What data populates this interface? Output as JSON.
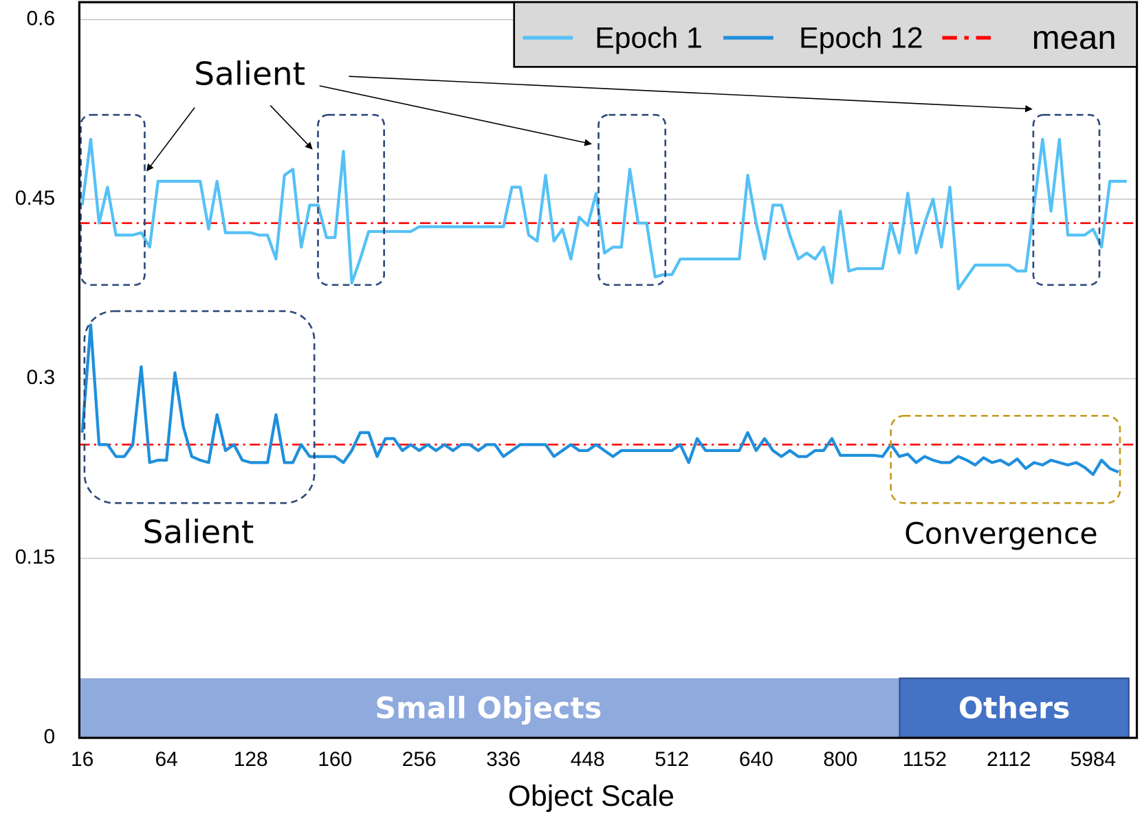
{
  "chart_data": {
    "type": "line",
    "x_label": "Object Scale",
    "categories": [
      "16",
      null,
      null,
      null,
      null,
      null,
      null,
      null,
      null,
      null,
      "64",
      null,
      null,
      null,
      null,
      null,
      null,
      null,
      null,
      null,
      "128",
      null,
      null,
      null,
      null,
      null,
      null,
      null,
      null,
      null,
      "160",
      null,
      null,
      null,
      null,
      null,
      null,
      null,
      null,
      null,
      "256",
      null,
      null,
      null,
      null,
      null,
      null,
      null,
      null,
      null,
      "336",
      null,
      null,
      null,
      null,
      null,
      null,
      null,
      null,
      null,
      "448",
      null,
      null,
      null,
      null,
      null,
      null,
      null,
      null,
      null,
      "512",
      null,
      null,
      null,
      null,
      null,
      null,
      null,
      null,
      null,
      "640",
      null,
      null,
      null,
      null,
      null,
      null,
      null,
      null,
      null,
      "800",
      null,
      null,
      null,
      null,
      null,
      null,
      null,
      null,
      null,
      "1152",
      null,
      null,
      null,
      null,
      null,
      null,
      null,
      null,
      null,
      "2112",
      null,
      null,
      null,
      null,
      null,
      null,
      null,
      null,
      null,
      "5984",
      null,
      null,
      null,
      null,
      null
    ],
    "series": [
      {
        "name": "Epoch 1",
        "color": "#55c1f5",
        "values": [
          0.445,
          0.5,
          0.43,
          0.46,
          0.42,
          0.42,
          0.42,
          0.422,
          0.41,
          0.465,
          0.465,
          0.465,
          0.465,
          0.465,
          0.465,
          0.425,
          0.465,
          0.422,
          0.422,
          0.422,
          0.422,
          0.42,
          0.42,
          0.4,
          0.47,
          0.475,
          0.41,
          0.445,
          0.445,
          0.418,
          0.418,
          0.49,
          0.38,
          0.4,
          0.423,
          0.423,
          0.423,
          0.423,
          0.423,
          0.423,
          0.427,
          0.427,
          0.427,
          0.427,
          0.427,
          0.427,
          0.427,
          0.427,
          0.427,
          0.427,
          0.427,
          0.46,
          0.46,
          0.42,
          0.415,
          0.47,
          0.415,
          0.425,
          0.4,
          0.435,
          0.428,
          0.455,
          0.405,
          0.41,
          0.41,
          0.475,
          0.43,
          0.43,
          0.385,
          0.387,
          0.387,
          0.4,
          0.4,
          0.4,
          0.4,
          0.4,
          0.4,
          0.4,
          0.4,
          0.47,
          0.43,
          0.4,
          0.445,
          0.445,
          0.42,
          0.4,
          0.405,
          0.4,
          0.41,
          0.38,
          0.44,
          0.39,
          0.392,
          0.392,
          0.392,
          0.392,
          0.43,
          0.405,
          0.455,
          0.405,
          0.43,
          0.45,
          0.41,
          0.46,
          0.375,
          0.385,
          0.395,
          0.395,
          0.395,
          0.395,
          0.395,
          0.39,
          0.39,
          0.445,
          0.5,
          0.44,
          0.5,
          0.42,
          0.42,
          0.42,
          0.425,
          0.41,
          0.465,
          0.465,
          0.465,
          null
        ]
      },
      {
        "name": "Epoch 12",
        "color": "#1f8fdc",
        "values": [
          0.255,
          0.345,
          0.245,
          0.245,
          0.235,
          0.235,
          0.245,
          0.31,
          0.23,
          0.232,
          0.232,
          0.305,
          0.26,
          0.235,
          0.232,
          0.23,
          0.27,
          0.24,
          0.245,
          0.232,
          0.23,
          0.23,
          0.23,
          0.27,
          0.23,
          0.23,
          0.245,
          0.235,
          0.235,
          0.235,
          0.235,
          0.23,
          0.24,
          0.255,
          0.255,
          0.235,
          0.25,
          0.25,
          0.24,
          0.245,
          0.24,
          0.245,
          0.24,
          0.245,
          0.24,
          0.245,
          0.245,
          0.24,
          0.245,
          0.245,
          0.235,
          0.24,
          0.245,
          0.245,
          0.245,
          0.245,
          0.235,
          0.24,
          0.245,
          0.24,
          0.24,
          0.245,
          0.24,
          0.235,
          0.24,
          0.24,
          0.24,
          0.24,
          0.24,
          0.24,
          0.24,
          0.245,
          0.23,
          0.25,
          0.24,
          0.24,
          0.24,
          0.24,
          0.24,
          0.255,
          0.24,
          0.25,
          0.24,
          0.235,
          0.24,
          0.235,
          0.235,
          0.24,
          0.24,
          0.25,
          0.236,
          0.236,
          0.236,
          0.236,
          0.236,
          0.235,
          0.245,
          0.235,
          0.237,
          0.23,
          0.235,
          0.232,
          0.23,
          0.23,
          0.235,
          0.232,
          0.228,
          0.234,
          0.23,
          0.232,
          0.228,
          0.233,
          0.225,
          0.23,
          0.228,
          0.232,
          0.23,
          0.228,
          0.23,
          0.226,
          0.22,
          0.232,
          0.225,
          0.222,
          null,
          null
        ]
      }
    ],
    "mean": {
      "name": "mean",
      "color": "#ff0000",
      "values": [
        0.43,
        0.245
      ]
    },
    "annotations": [
      "Salient",
      "Salient",
      "Convergence"
    ],
    "regions": [
      "Small Objects",
      "Others"
    ],
    "ylim": [
      0,
      0.6
    ],
    "yticks": [
      0,
      0.15,
      0.3,
      0.45,
      0.6
    ],
    "grid": true
  }
}
